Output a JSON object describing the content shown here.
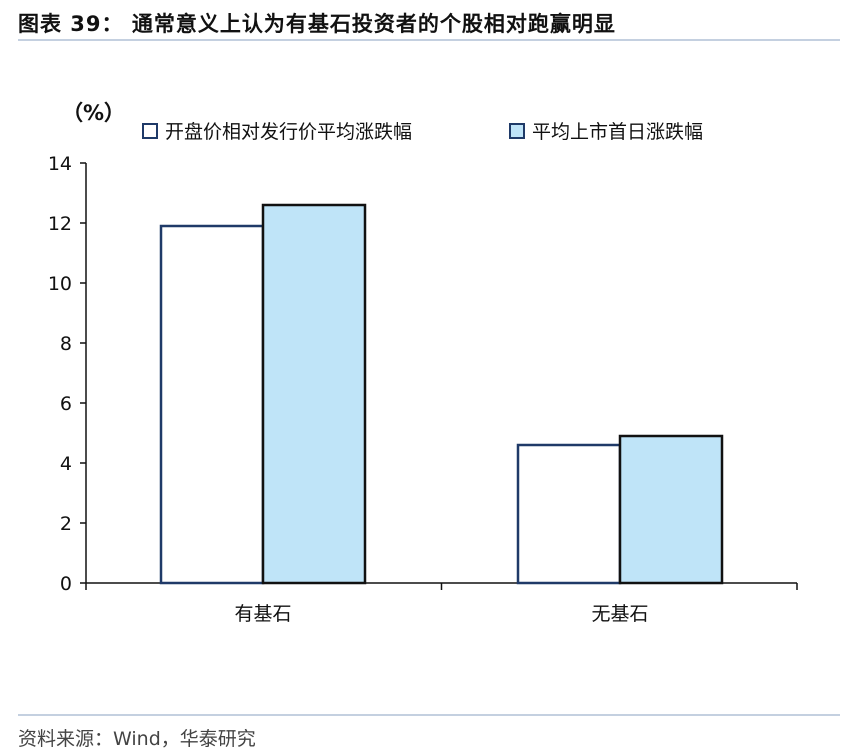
{
  "title": "图表 39：  通常意义上认为有基石投资者的个股相对跑赢明显",
  "source": "资料来源：Wind，华泰研究",
  "chart_data": {
    "type": "bar",
    "ylabel": "（%）",
    "ylim": [
      0,
      14
    ],
    "yticks": [
      0,
      2,
      4,
      6,
      8,
      10,
      12,
      14
    ],
    "categories": [
      "有基石",
      "无基石"
    ],
    "legend_position": "top",
    "grid": false,
    "series": [
      {
        "name": "开盘价相对发行价平均涨跌幅",
        "values": [
          11.9,
          4.6
        ],
        "fill": "#ffffff",
        "stroke": "#1f3a68"
      },
      {
        "name": "平均上市首日涨跌幅",
        "values": [
          12.6,
          4.9
        ],
        "fill": "#bfe4f8",
        "stroke": "#111111"
      }
    ]
  }
}
